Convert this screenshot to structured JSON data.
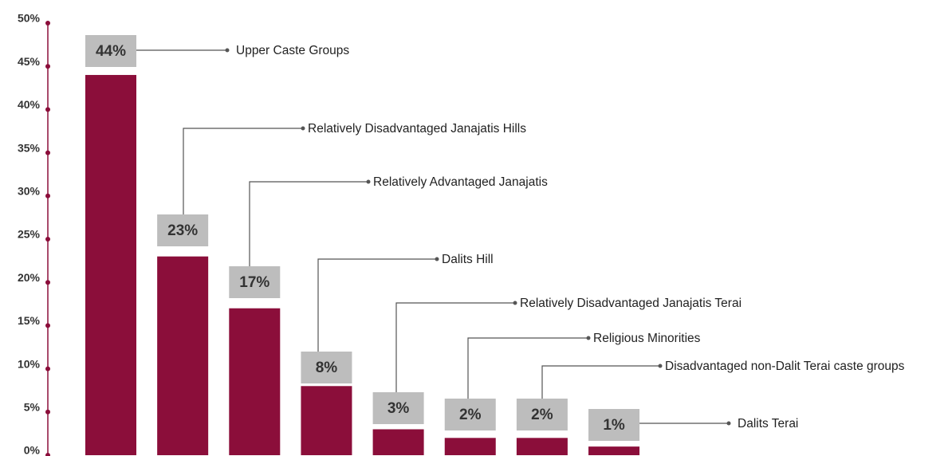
{
  "chart_data": {
    "type": "bar",
    "categories": [
      "Upper Caste Groups",
      "Relatively Disadvantaged Janajatis Hills",
      "Relatively Advantaged Janajatis",
      "Dalits Hill",
      "Relatively Disadvantaged Janajatis Terai",
      "Religious Minorities",
      "Disadvantaged non-Dalit Terai caste groups",
      "Dalits Terai"
    ],
    "values": [
      44,
      23,
      17,
      8,
      3,
      2,
      2,
      1
    ],
    "value_labels": [
      "44%",
      "23%",
      "17%",
      "8%",
      "3%",
      "2%",
      "2%",
      "1%"
    ],
    "color": "#8b0e3a",
    "ylim": [
      0,
      50
    ],
    "yticks": [
      {
        "value": 0,
        "label": "0%"
      },
      {
        "value": 5,
        "label": "5%"
      },
      {
        "value": 10,
        "label": "10%"
      },
      {
        "value": 15,
        "label": "15%"
      },
      {
        "value": 20,
        "label": "20%"
      },
      {
        "value": 25,
        "label": "25%"
      },
      {
        "value": 30,
        "label": "30%"
      },
      {
        "value": 35,
        "label": "35%"
      },
      {
        "value": 40,
        "label": "40%"
      },
      {
        "value": 45,
        "label": "45%"
      },
      {
        "value": 50,
        "label": "50%"
      }
    ]
  }
}
